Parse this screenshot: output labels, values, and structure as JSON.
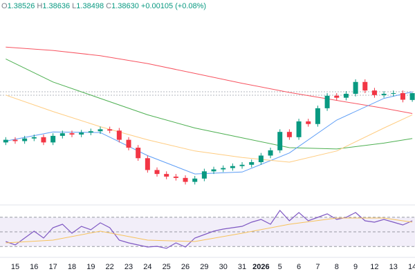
{
  "header": {
    "items": [
      {
        "label": "O",
        "value": "1.38526"
      },
      {
        "label": "H",
        "value": "1.38636"
      },
      {
        "label": "L",
        "value": "1.38498"
      },
      {
        "label": "C",
        "value": "1.38630"
      }
    ],
    "change": "+0.00105 (+0.08%)"
  },
  "chart_data": [
    {
      "type": "candlestick",
      "up_color": "#089981",
      "down_color": "#f23645",
      "ylim": [
        1.3695,
        1.399
      ],
      "categories": [
        null,
        "15",
        null,
        "16",
        null,
        "17",
        null,
        "18",
        null,
        "19",
        null,
        "22",
        null,
        "23",
        null,
        "24",
        null,
        "25",
        null,
        "26",
        null,
        "29",
        null,
        "30",
        null,
        "31",
        null,
        "2026",
        null,
        "5",
        null,
        "6",
        null,
        "7",
        null,
        "8",
        null,
        "9",
        null,
        "12",
        null,
        "13",
        null,
        "14"
      ],
      "open": [
        1.3788,
        1.3792,
        1.379,
        1.3794,
        1.3796,
        1.3788,
        1.3798,
        1.3802,
        1.38,
        1.3803,
        1.3805,
        1.3808,
        1.3806,
        1.3792,
        1.378,
        1.3764,
        1.3746,
        1.374,
        1.3736,
        1.3734,
        1.3728,
        1.3733,
        1.3744,
        1.3747,
        1.3749,
        1.3752,
        1.3754,
        1.3758,
        1.3768,
        1.3776,
        1.3804,
        1.3796,
        1.382,
        1.3816,
        1.384,
        1.3859,
        1.3856,
        1.3862,
        1.388,
        1.3867,
        1.386,
        1.3862,
        1.3863,
        1.38526
      ],
      "high": [
        1.3796,
        1.3796,
        1.3798,
        1.38,
        1.38,
        1.3802,
        1.3806,
        1.3806,
        1.3807,
        1.3809,
        1.3812,
        1.3812,
        1.381,
        1.3796,
        1.3784,
        1.3768,
        1.375,
        1.3744,
        1.374,
        1.3738,
        1.3737,
        1.3748,
        1.3751,
        1.3753,
        1.3756,
        1.3758,
        1.3762,
        1.3772,
        1.378,
        1.3808,
        1.3808,
        1.3824,
        1.3824,
        1.3844,
        1.3863,
        1.3863,
        1.3866,
        1.3884,
        1.3884,
        1.3871,
        1.3866,
        1.3867,
        1.3867,
        1.38636
      ],
      "low": [
        1.3784,
        1.3786,
        1.3786,
        1.379,
        1.3784,
        1.3784,
        1.3794,
        1.3796,
        1.3796,
        1.3799,
        1.3801,
        1.3802,
        1.3788,
        1.3776,
        1.376,
        1.3742,
        1.3736,
        1.3732,
        1.373,
        1.3724,
        1.3724,
        1.3729,
        1.374,
        1.3743,
        1.3745,
        1.3748,
        1.375,
        1.3754,
        1.3764,
        1.3772,
        1.3792,
        1.3792,
        1.3812,
        1.3812,
        1.3836,
        1.3852,
        1.3852,
        1.3858,
        1.3863,
        1.3856,
        1.3856,
        1.3858,
        1.3849,
        1.38498
      ],
      "close": [
        1.3792,
        1.379,
        1.3794,
        1.3796,
        1.3788,
        1.3798,
        1.3802,
        1.38,
        1.3803,
        1.3805,
        1.3808,
        1.3806,
        1.3792,
        1.378,
        1.3764,
        1.3746,
        1.374,
        1.3736,
        1.3734,
        1.3728,
        1.3733,
        1.3744,
        1.3747,
        1.3749,
        1.3752,
        1.3754,
        1.3758,
        1.3768,
        1.3776,
        1.3804,
        1.3796,
        1.382,
        1.3816,
        1.384,
        1.3859,
        1.3856,
        1.3862,
        1.388,
        1.3867,
        1.386,
        1.3862,
        1.3863,
        1.3853,
        1.3863
      ],
      "lines": [
        {
          "color": "#f7525f",
          "x": [
            0,
            5,
            10,
            15,
            20,
            25,
            30,
            35,
            40,
            43
          ],
          "values": [
            1.3933,
            1.3928,
            1.392,
            1.3908,
            1.3893,
            1.3878,
            1.3864,
            1.3852,
            1.384,
            1.3832
          ]
        },
        {
          "color": "#4caf50",
          "x": [
            0,
            5,
            10,
            15,
            20,
            25,
            30,
            35,
            40,
            43
          ],
          "values": [
            1.3915,
            1.388,
            1.3855,
            1.383,
            1.381,
            1.3795,
            1.378,
            1.3778,
            1.3787,
            1.3794
          ]
        },
        {
          "color": "#5b9cf6",
          "x": [
            0,
            5,
            10,
            15,
            20,
            25,
            30,
            35,
            40,
            43
          ],
          "values": [
            1.379,
            1.3804,
            1.3803,
            1.3768,
            1.374,
            1.3743,
            1.3772,
            1.3822,
            1.3855,
            1.3865
          ]
        },
        {
          "color": "#ffcc80",
          "x": [
            0,
            5,
            10,
            15,
            20,
            25,
            30,
            35,
            40,
            43
          ],
          "values": [
            1.386,
            1.3835,
            1.3812,
            1.3792,
            1.3775,
            1.3765,
            1.3758,
            1.3775,
            1.381,
            1.383
          ]
        }
      ]
    },
    {
      "type": "line",
      "ylim": [
        16,
        86
      ],
      "bands": [
        70,
        50,
        30
      ],
      "band_color": "#7e57c2",
      "series": [
        {
          "color": "#7e57c2",
          "values": [
            36.8,
            32.1,
            41.5,
            51.0,
            41.5,
            55.7,
            60.5,
            48.2,
            57.6,
            52.9,
            62.4,
            55.7,
            38.7,
            34.9,
            32.1,
            29.2,
            30.2,
            27.4,
            34.9,
            29.2,
            41.5,
            46.3,
            51.0,
            53.8,
            55.7,
            57.6,
            63.3,
            67.1,
            60.5,
            79.4,
            65.2,
            76.5,
            65.2,
            69.9,
            74.7,
            67.1,
            69.9,
            76.5,
            65.2,
            63.3,
            67.1,
            63.3,
            59.5,
            65.2
          ]
        },
        {
          "color": "#f7c25a",
          "x": [
            0,
            5,
            10,
            15,
            20,
            25,
            30,
            35,
            40,
            43
          ],
          "values": [
            34.9,
            38.7,
            51.0,
            38.7,
            36.8,
            48.2,
            60.5,
            69.0,
            69.0,
            63.3
          ]
        }
      ]
    }
  ]
}
